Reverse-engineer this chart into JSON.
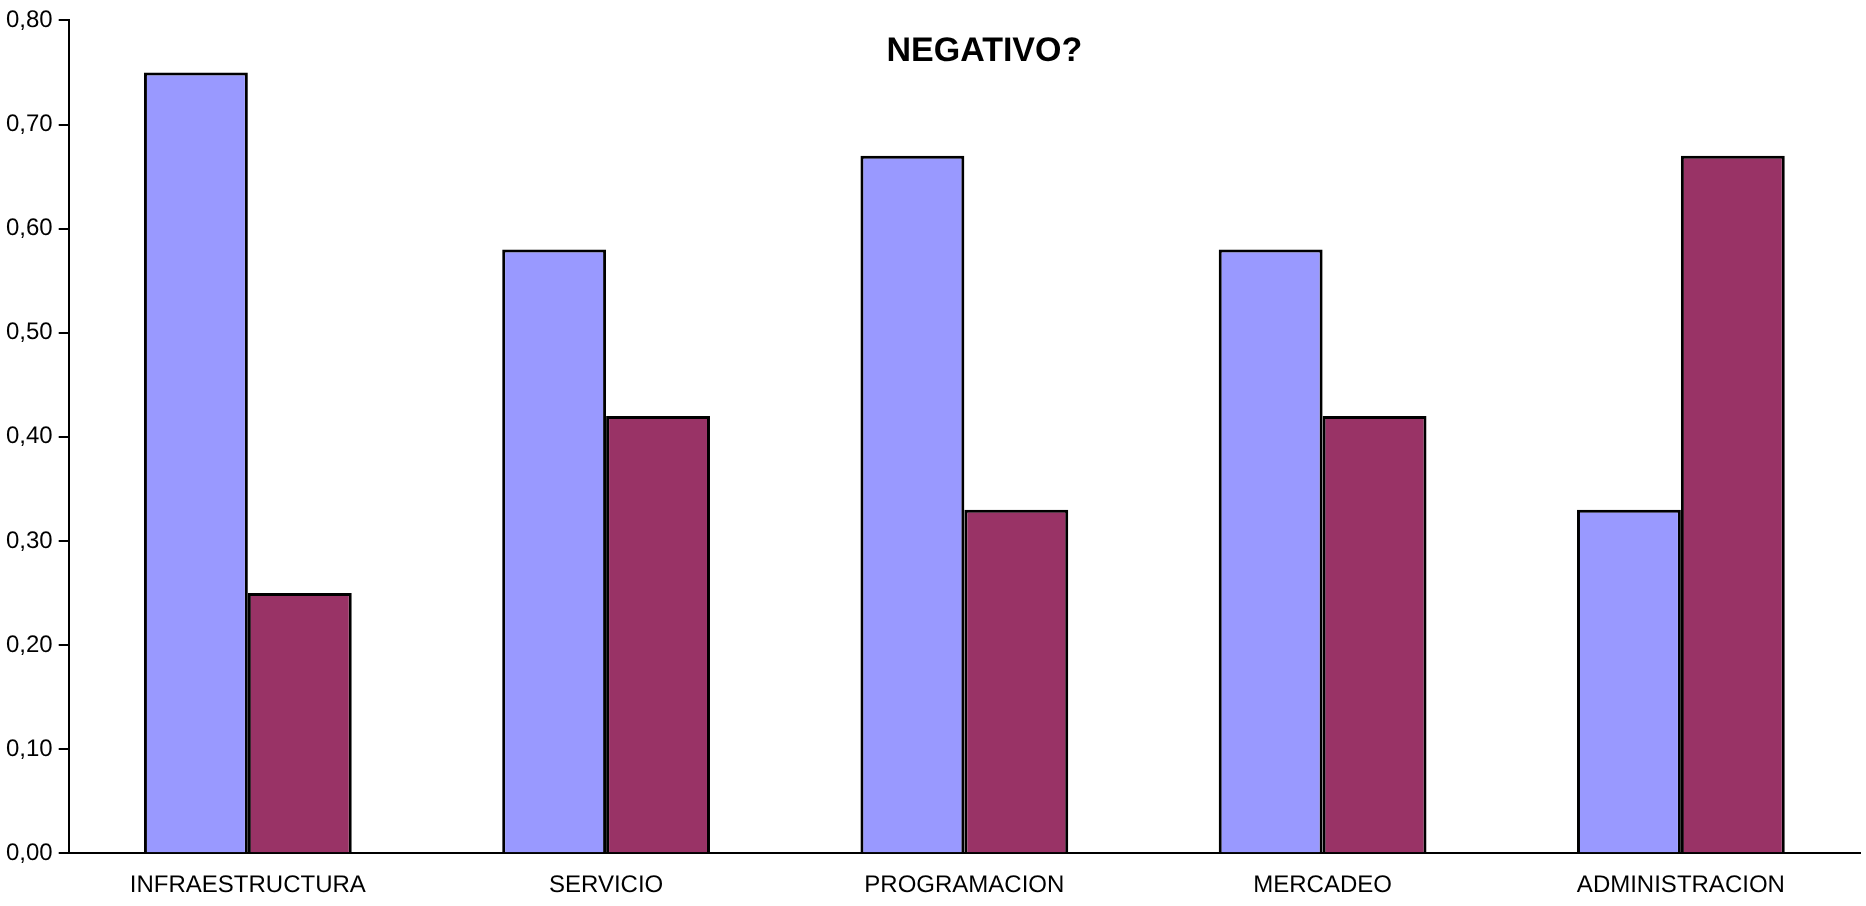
{
  "chart_data": {
    "type": "bar",
    "title": "NEGATIVO?",
    "categories": [
      "INFRAESTRUCTURA",
      "SERVICIO",
      "PROGRAMACION",
      "MERCADEO",
      "ADMINISTRACION"
    ],
    "series": [
      {
        "color": "#9999ff",
        "values": [
          0.75,
          0.58,
          0.67,
          0.58,
          0.33
        ]
      },
      {
        "color": "#993366",
        "values": [
          0.25,
          0.42,
          0.33,
          0.42,
          0.67
        ]
      }
    ],
    "ylim": [
      0,
      0.8
    ],
    "yticks": [
      {
        "value": 0,
        "label": "0,00"
      },
      {
        "value": 0.1,
        "label": "0,10"
      },
      {
        "value": 0.2,
        "label": "0,20"
      },
      {
        "value": 0.3,
        "label": "0,30"
      },
      {
        "value": 0.4,
        "label": "0,40"
      },
      {
        "value": 0.5,
        "label": "0,50"
      },
      {
        "value": 0.6,
        "label": "0,60"
      },
      {
        "value": 0.7,
        "label": "0,70"
      },
      {
        "value": 0.8,
        "label": "0,80"
      }
    ],
    "grid": false,
    "legend": false
  }
}
